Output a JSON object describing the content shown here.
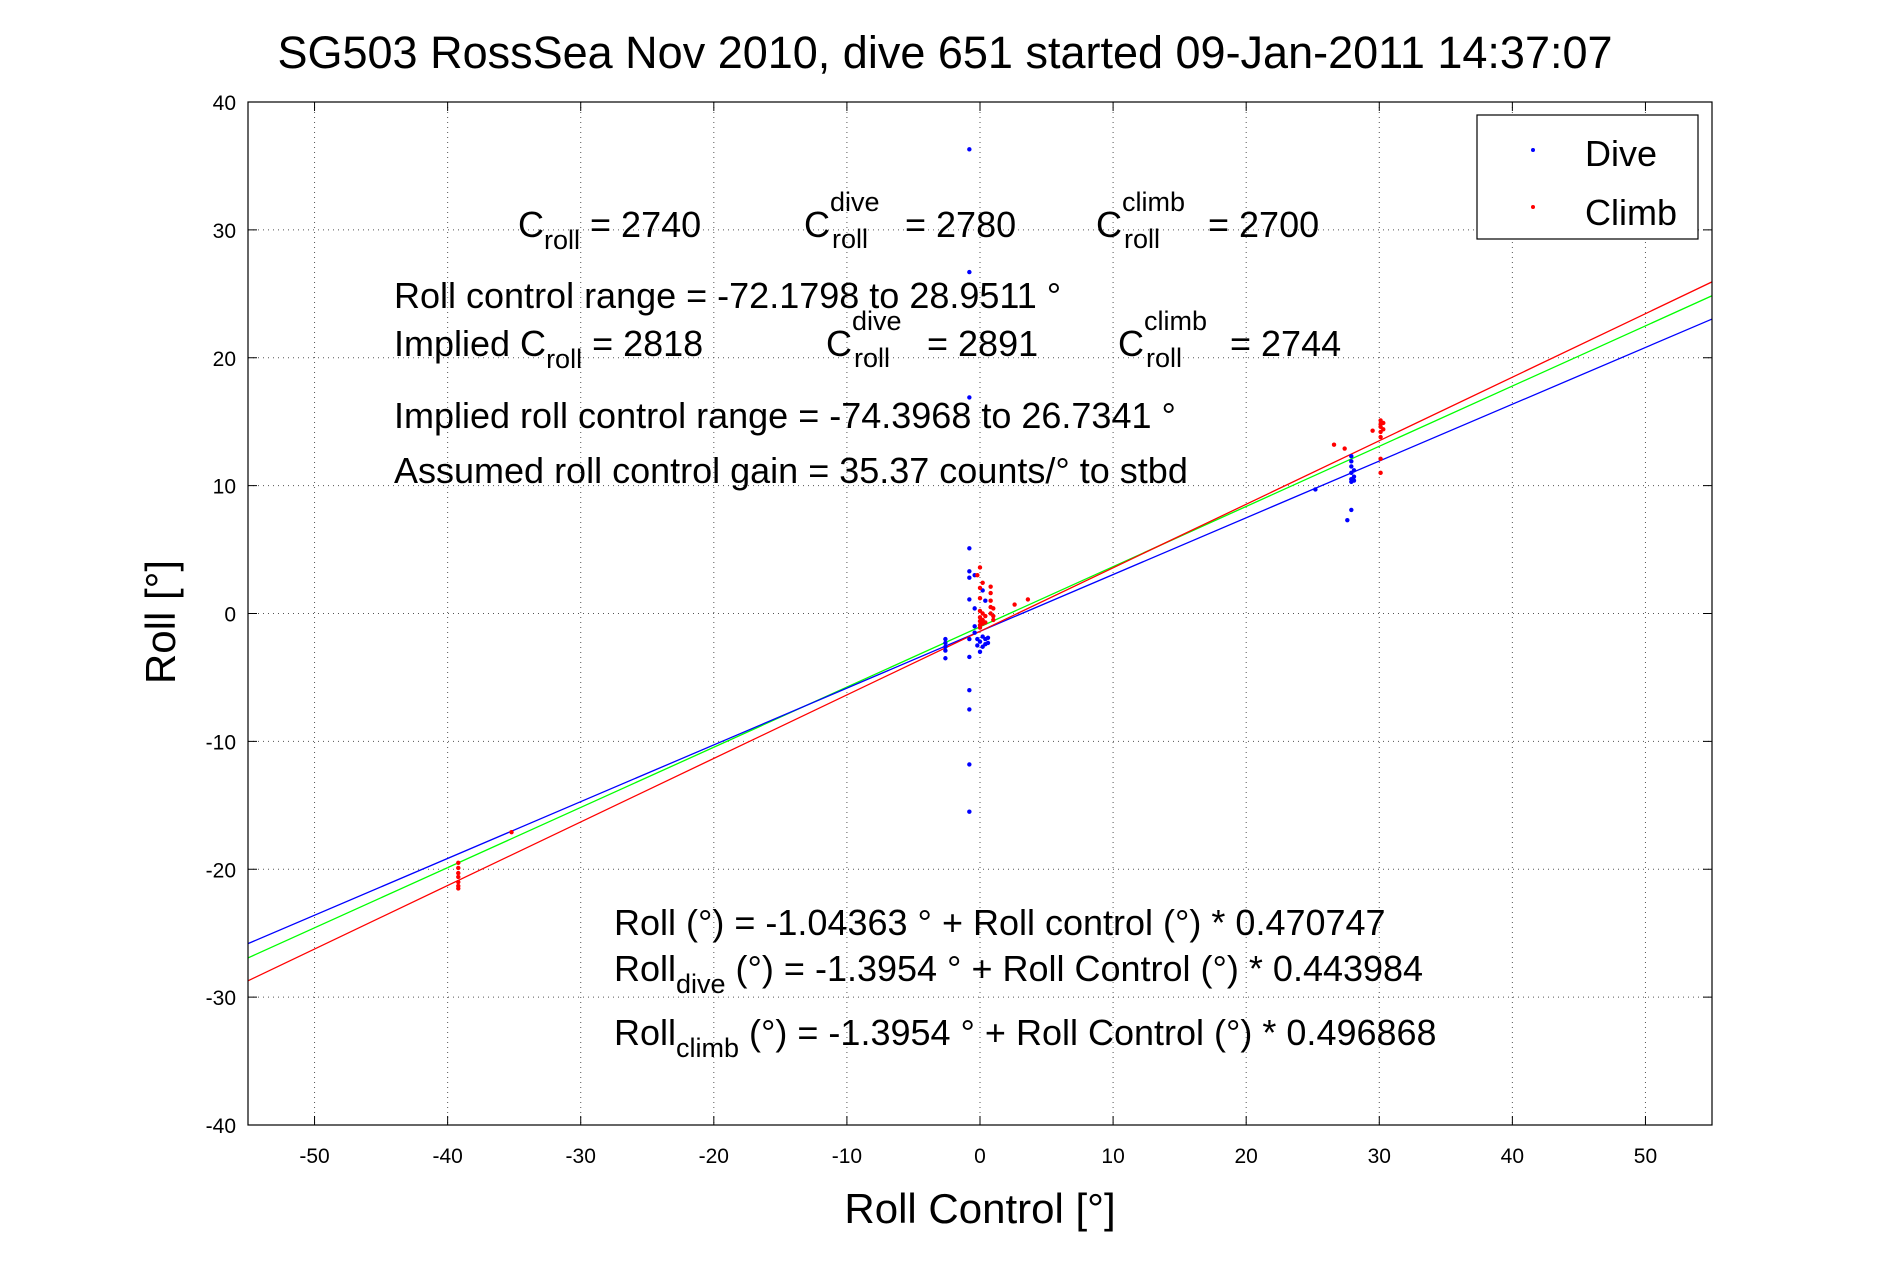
{
  "chart_data": {
    "type": "scatter",
    "title": "SG503 RossSea Nov 2010, dive 651 started 09-Jan-2011 14:37:07",
    "xlabel": "Roll Control [°]",
    "ylabel": "Roll [°]",
    "xlim": [
      -55,
      55
    ],
    "ylim": [
      -40,
      40
    ],
    "xticks": [
      "-50",
      "-40",
      "-30",
      "-20",
      "-10",
      "0",
      "10",
      "20",
      "30",
      "40",
      "50"
    ],
    "yticks": [
      "40",
      "30",
      "20",
      "10",
      "0",
      "-10",
      "-20",
      "-30",
      "-40"
    ],
    "xtick_values": [
      -50,
      -40,
      -30,
      -20,
      -10,
      0,
      10,
      20,
      30,
      40,
      50
    ],
    "ytick_values": [
      40,
      30,
      20,
      10,
      0,
      -10,
      -20,
      -30,
      -40
    ],
    "grid": true,
    "legend_position": "top-right",
    "series": [
      {
        "name": "Dive",
        "color": "#0000ff",
        "points": [
          [
            -2.6,
            -2.0
          ],
          [
            -2.6,
            -2.3
          ],
          [
            -2.6,
            -2.6
          ],
          [
            -2.6,
            -2.9
          ],
          [
            -2.6,
            -3.5
          ],
          [
            -0.8,
            36.3
          ],
          [
            -0.8,
            26.7
          ],
          [
            -0.8,
            16.9
          ],
          [
            -0.8,
            5.1
          ],
          [
            -0.8,
            3.3
          ],
          [
            -0.8,
            2.8
          ],
          [
            -0.8,
            1.1
          ],
          [
            -0.8,
            -2.0
          ],
          [
            -0.8,
            -3.4
          ],
          [
            -0.8,
            -6.0
          ],
          [
            -0.8,
            -7.5
          ],
          [
            -0.8,
            -11.8
          ],
          [
            -0.8,
            -15.5
          ],
          [
            -0.4,
            3.0
          ],
          [
            -0.4,
            0.4
          ],
          [
            -0.4,
            -1.0
          ],
          [
            -0.4,
            -1.5
          ],
          [
            -0.2,
            -2.0
          ],
          [
            -0.2,
            -2.5
          ],
          [
            0.0,
            -2.2
          ],
          [
            0.0,
            -3.0
          ],
          [
            0.2,
            -1.8
          ],
          [
            0.2,
            -2.6
          ],
          [
            0.4,
            -2.0
          ],
          [
            0.4,
            -2.4
          ],
          [
            0.6,
            -1.9
          ],
          [
            0.6,
            -2.3
          ],
          [
            0.2,
            1.8
          ],
          [
            0.4,
            1.0
          ],
          [
            25.2,
            9.7
          ],
          [
            27.9,
            12.3
          ],
          [
            27.9,
            11.9
          ],
          [
            27.9,
            11.5
          ],
          [
            27.9,
            11.0
          ],
          [
            27.9,
            10.5
          ],
          [
            27.9,
            10.3
          ],
          [
            28.1,
            11.2
          ],
          [
            28.1,
            10.7
          ],
          [
            27.9,
            8.1
          ],
          [
            27.6,
            7.3
          ],
          [
            28.1,
            10.4
          ]
        ]
      },
      {
        "name": "Climb",
        "color": "#ff0000",
        "points": [
          [
            -39.2,
            -19.5
          ],
          [
            -39.2,
            -19.9
          ],
          [
            -39.2,
            -20.3
          ],
          [
            -39.2,
            -20.6
          ],
          [
            -39.2,
            -21.0
          ],
          [
            -39.2,
            -21.3
          ],
          [
            -39.2,
            -21.5
          ],
          [
            -35.2,
            -17.1
          ],
          [
            -0.2,
            3.0
          ],
          [
            0.0,
            3.6
          ],
          [
            0.0,
            2.0
          ],
          [
            0.0,
            1.2
          ],
          [
            0.0,
            0.2
          ],
          [
            0.0,
            -0.3
          ],
          [
            0.0,
            -0.6
          ],
          [
            0.0,
            -0.9
          ],
          [
            0.0,
            -1.1
          ],
          [
            0.2,
            2.4
          ],
          [
            0.2,
            0.0
          ],
          [
            0.2,
            -0.5
          ],
          [
            0.2,
            -0.8
          ],
          [
            0.4,
            -0.2
          ],
          [
            0.4,
            -0.7
          ],
          [
            0.8,
            2.1
          ],
          [
            0.8,
            1.6
          ],
          [
            0.8,
            1.0
          ],
          [
            0.8,
            0.5
          ],
          [
            0.8,
            0.0
          ],
          [
            1.0,
            0.4
          ],
          [
            1.0,
            -0.2
          ],
          [
            1.0,
            -0.5
          ],
          [
            2.6,
            0.7
          ],
          [
            3.6,
            1.1
          ],
          [
            26.6,
            13.2
          ],
          [
            27.4,
            12.9
          ],
          [
            30.1,
            15.1
          ],
          [
            30.1,
            14.8
          ],
          [
            30.1,
            14.6
          ],
          [
            30.1,
            14.2
          ],
          [
            30.1,
            13.8
          ],
          [
            30.3,
            14.9
          ],
          [
            30.3,
            14.4
          ],
          [
            30.1,
            12.1
          ],
          [
            30.1,
            11.0
          ],
          [
            29.5,
            14.3
          ]
        ]
      }
    ],
    "fit_lines": [
      {
        "color": "#00ff00",
        "intercept": -1.04363,
        "slope": 0.470747
      },
      {
        "color": "#0000ff",
        "intercept": -1.3954,
        "slope": 0.443984
      },
      {
        "color": "#ff0000",
        "intercept": -1.3954,
        "slope": 0.496868
      }
    ]
  },
  "annotations": {
    "c_roll": {
      "base": "C",
      "sub": "roll",
      "rest": " = 2740"
    },
    "c_roll_dive": {
      "base": "C",
      "sup": "dive",
      "sub": "roll",
      "rest": " = 2780"
    },
    "c_roll_climb": {
      "base": "C",
      "sup": "climb",
      "sub": "roll",
      "rest": " = 2700"
    },
    "range_line": "Roll control range = -72.1798 to 28.9511 °",
    "implied_prefix": "Implied C",
    "implied_sub": "roll",
    "implied_rest": " = 2818",
    "implied_dive": {
      "base": "C",
      "sup": "dive",
      "sub": "roll",
      "rest": " = 2891"
    },
    "implied_climb": {
      "base": "C",
      "sup": "climb",
      "sub": "roll",
      "rest": " = 2744"
    },
    "implied_range": "Implied roll control range = -74.3968 to 26.7341 °",
    "gain_line": "Assumed roll control gain = 35.37 counts/° to stbd",
    "fit_line": "Roll (°) = -1.04363 ° + Roll control (°) * 0.470747",
    "fit_dive_base": "Roll",
    "fit_dive_sub": "dive",
    "fit_dive_rest": " (°) = -1.3954 ° + Roll Control (°) * 0.443984",
    "fit_climb_base": "Roll",
    "fit_climb_sub": "climb",
    "fit_climb_rest": " (°) = -1.3954 ° + Roll Control (°) * 0.496868"
  }
}
